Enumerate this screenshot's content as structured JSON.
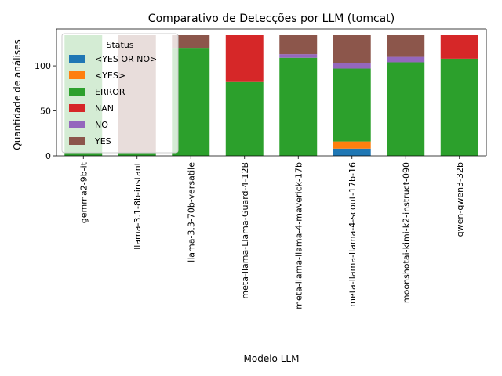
{
  "chart_data": {
    "type": "bar",
    "stacked": true,
    "title": "Comparativo de Detecções por LLM (tomcat)",
    "xlabel": "Modelo LLM",
    "ylabel": "Quantidade de análises",
    "ylim": [
      0,
      134
    ],
    "yticks": [
      0,
      50,
      100
    ],
    "grid": false,
    "legend_title": "Status",
    "legend_position": "top-left",
    "categories": [
      "gemma2-9b-it",
      "llama-3.1-8b-instant",
      "llama-3.3-70b-versatile",
      "meta-llama-Llama-Guard-4-12B",
      "meta-llama-llama-4-maverick-17b",
      "meta-llama-llama-4-scout-17b-16",
      "moonshotai-kimi-k2-instruct-090",
      "qwen-qwen3-32b"
    ],
    "series": [
      {
        "name": "<YES OR NO>",
        "color": "#1f77b4",
        "values": [
          0,
          0,
          0,
          0,
          0,
          8,
          0,
          0
        ]
      },
      {
        "name": "<YES>",
        "color": "#ff7f0e",
        "values": [
          0,
          0,
          0,
          0,
          0,
          8,
          0,
          0
        ]
      },
      {
        "name": "ERROR",
        "color": "#2ca02c",
        "values": [
          134,
          3,
          120,
          82,
          109,
          81,
          104,
          108
        ]
      },
      {
        "name": "NAN",
        "color": "#d62728",
        "values": [
          0,
          0,
          0,
          52,
          0,
          0,
          0,
          26
        ]
      },
      {
        "name": "NO",
        "color": "#9467bd",
        "values": [
          0,
          0,
          0,
          0,
          4,
          6,
          6,
          0
        ]
      },
      {
        "name": "YES",
        "color": "#8c564b",
        "values": [
          0,
          131,
          14,
          0,
          21,
          31,
          24,
          0
        ]
      }
    ]
  }
}
